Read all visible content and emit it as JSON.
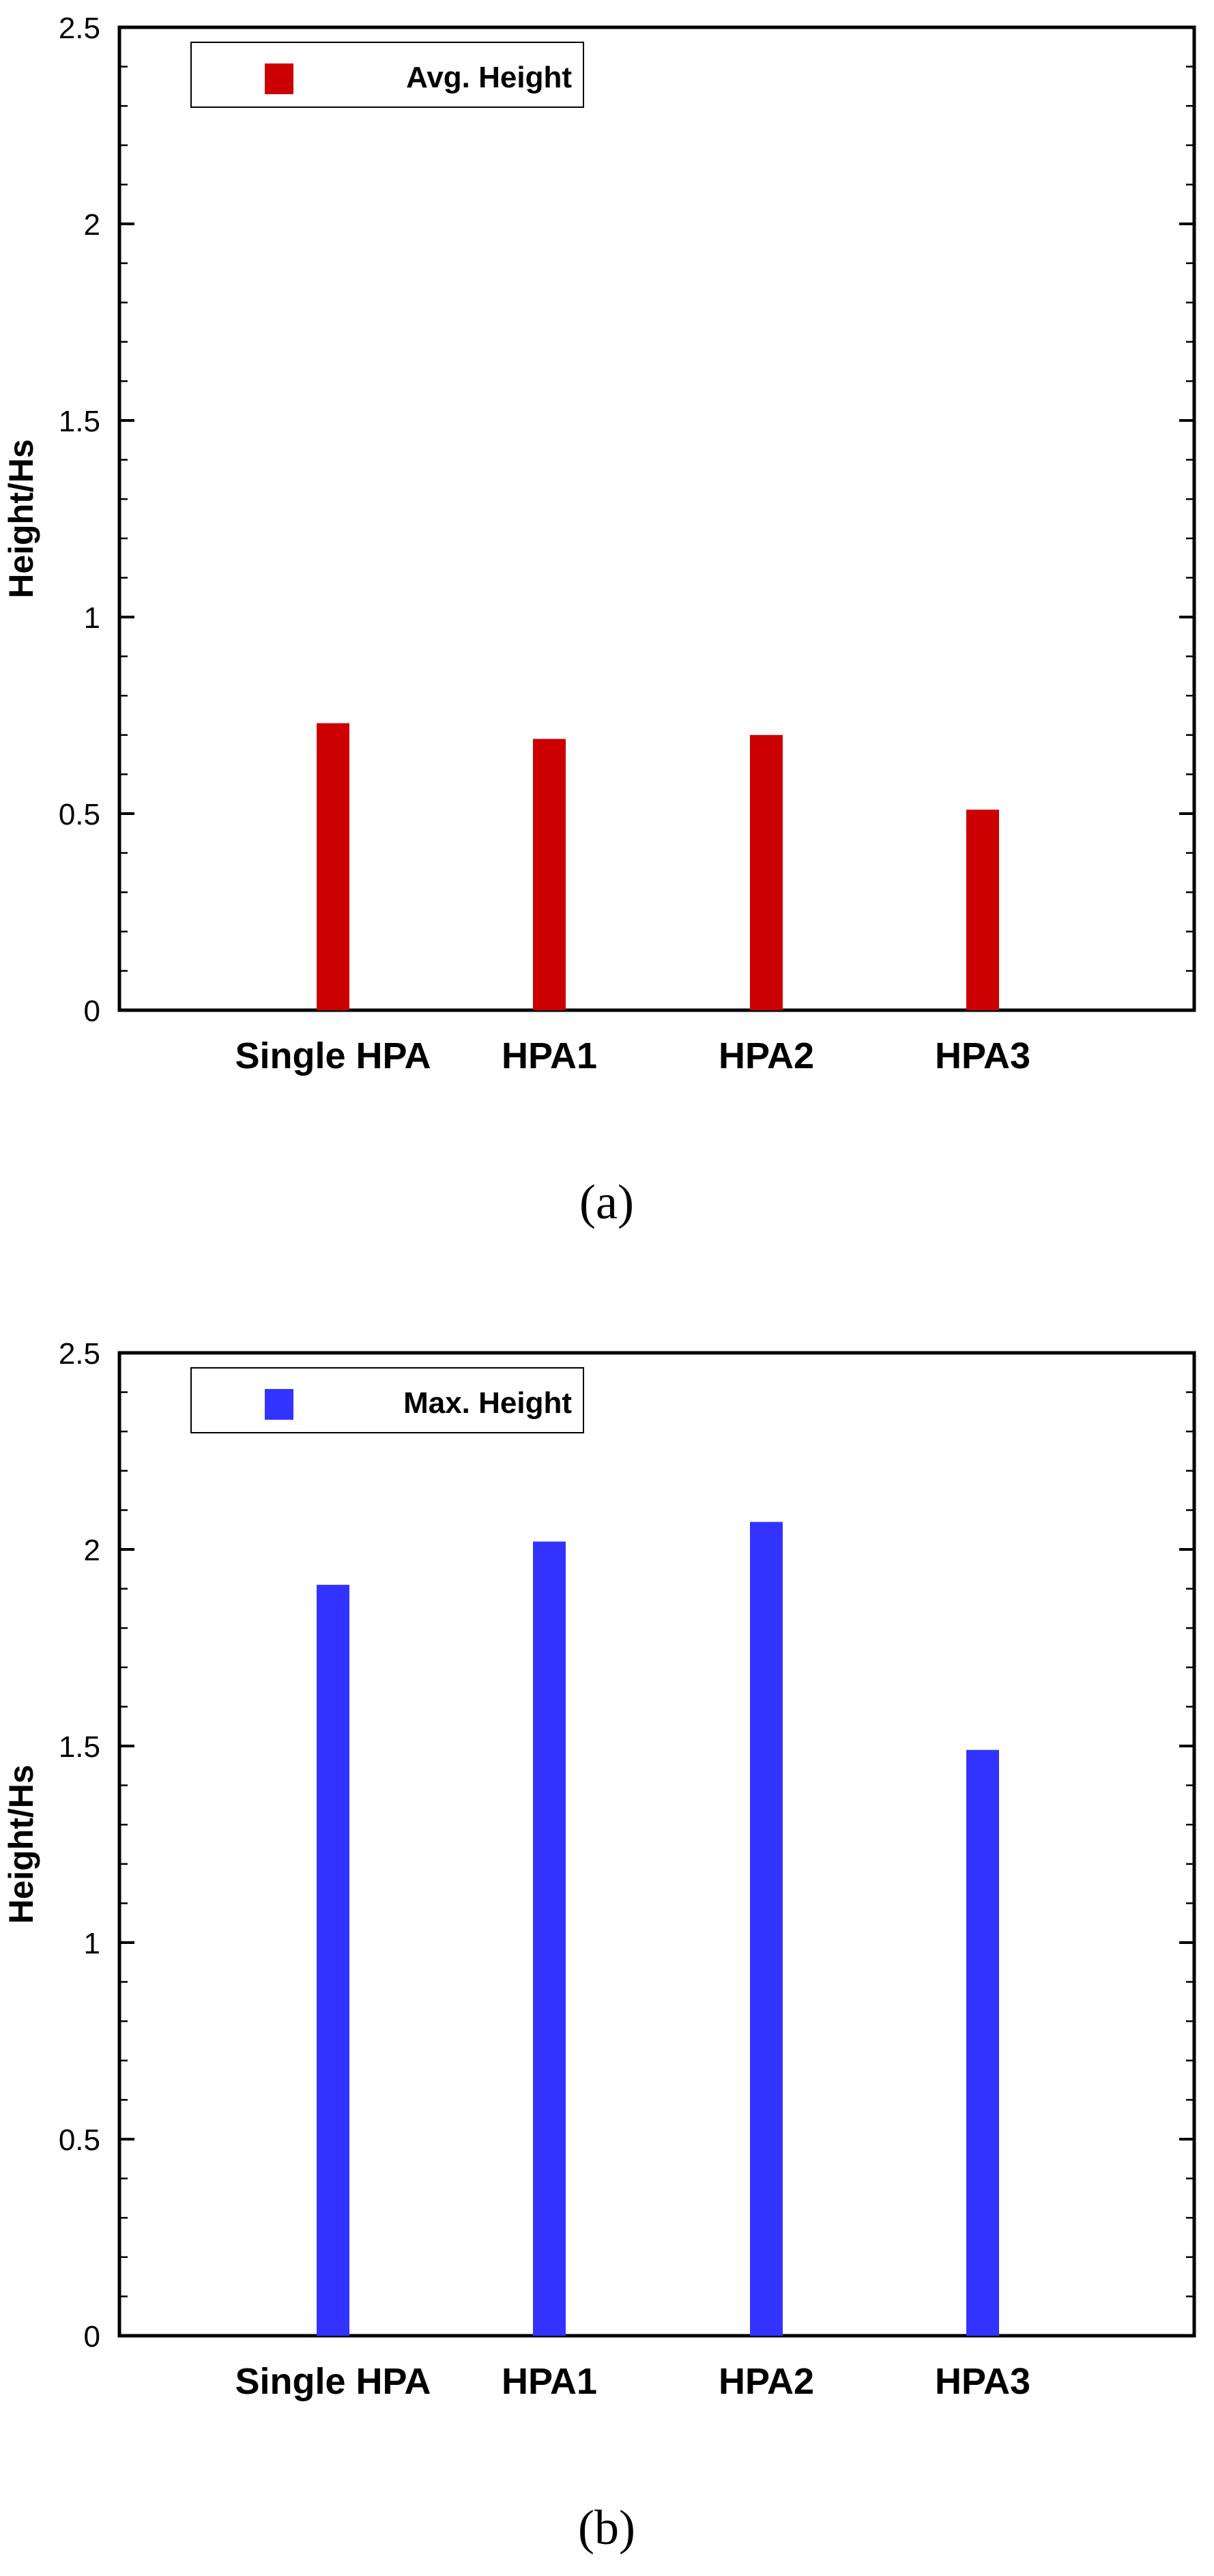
{
  "chart_data": [
    {
      "type": "bar",
      "panel_label": "(a)",
      "categories": [
        "Single HPA",
        "HPA1",
        "HPA2",
        "HPA3"
      ],
      "values": [
        0.73,
        0.69,
        0.7,
        0.51
      ],
      "yticks": [
        "0",
        "0.5",
        "1",
        "1.5",
        "2",
        "2.5"
      ],
      "ylim": [
        0,
        2.5
      ],
      "ylabel": "Height/Hs",
      "xlabel": "",
      "legend": {
        "label": "Avg. Height",
        "placement": "top-left"
      },
      "color": "#cc0000",
      "grid": false
    },
    {
      "type": "bar",
      "panel_label": "(b)",
      "categories": [
        "Single HPA",
        "HPA1",
        "HPA2",
        "HPA3"
      ],
      "values": [
        1.91,
        2.02,
        2.07,
        1.49
      ],
      "yticks": [
        "0",
        "0.5",
        "1",
        "1.5",
        "2",
        "2.5"
      ],
      "ylim": [
        0,
        2.5
      ],
      "ylabel": "Height/Hs",
      "xlabel": "",
      "legend": {
        "label": "Max. Height",
        "placement": "top-left"
      },
      "color": "#3333ff",
      "grid": false
    }
  ]
}
